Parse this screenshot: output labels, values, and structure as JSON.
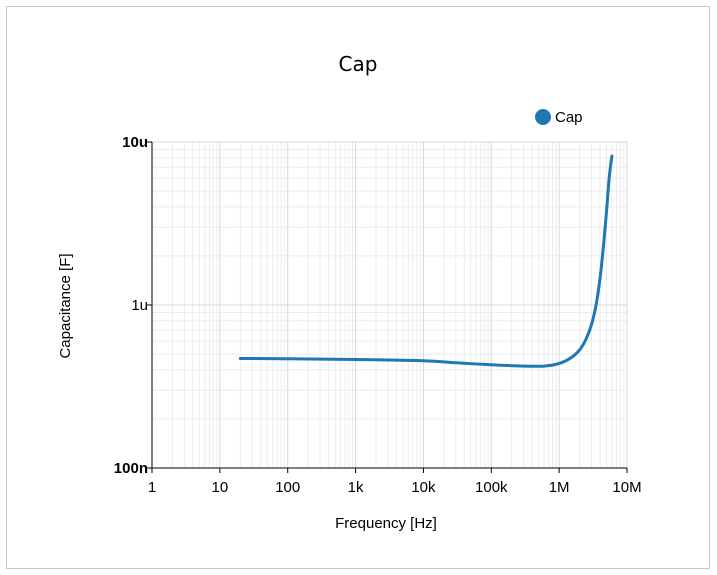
{
  "chart_data": {
    "type": "line",
    "title": "Cap",
    "xlabel": "Frequency [Hz]",
    "ylabel": "Capacitance [F]",
    "x_scale": "log",
    "y_scale": "log",
    "xlim": [
      1,
      10000000
    ],
    "ylim": [
      1e-07,
      1e-05
    ],
    "grid": true,
    "legend_position": "top-right",
    "x_ticks": [
      {
        "value": 1,
        "label": "1",
        "bold": false
      },
      {
        "value": 10,
        "label": "10",
        "bold": false
      },
      {
        "value": 100,
        "label": "100",
        "bold": false
      },
      {
        "value": 1000,
        "label": "1k",
        "bold": false
      },
      {
        "value": 10000,
        "label": "10k",
        "bold": false
      },
      {
        "value": 100000,
        "label": "100k",
        "bold": false
      },
      {
        "value": 1000000,
        "label": "1M",
        "bold": false
      },
      {
        "value": 10000000,
        "label": "10M",
        "bold": false
      }
    ],
    "y_ticks": [
      {
        "value": 1e-07,
        "label": "100n",
        "bold": true
      },
      {
        "value": 1e-06,
        "label": "1u",
        "bold": false
      },
      {
        "value": 1e-05,
        "label": "10u",
        "bold": true
      }
    ],
    "series": [
      {
        "name": "Cap",
        "color": "#1f77b4",
        "points": [
          [
            20,
            4.7e-07
          ],
          [
            100,
            4.68e-07
          ],
          [
            1000,
            4.63e-07
          ],
          [
            10000,
            4.55e-07
          ],
          [
            30000,
            4.42e-07
          ],
          [
            100000,
            4.3e-07
          ],
          [
            300000,
            4.22e-07
          ],
          [
            600000,
            4.22e-07
          ],
          [
            1000000,
            4.38e-07
          ],
          [
            1500000,
            4.75e-07
          ],
          [
            2000000,
            5.3e-07
          ],
          [
            2500000,
            6.2e-07
          ],
          [
            3000000,
            7.6e-07
          ],
          [
            3500000,
            1e-06
          ],
          [
            4000000,
            1.45e-06
          ],
          [
            4500000,
            2.3e-06
          ],
          [
            5000000,
            3.8e-06
          ],
          [
            5500000,
            6.2e-06
          ],
          [
            6000000,
            8.2e-06
          ]
        ]
      }
    ]
  }
}
